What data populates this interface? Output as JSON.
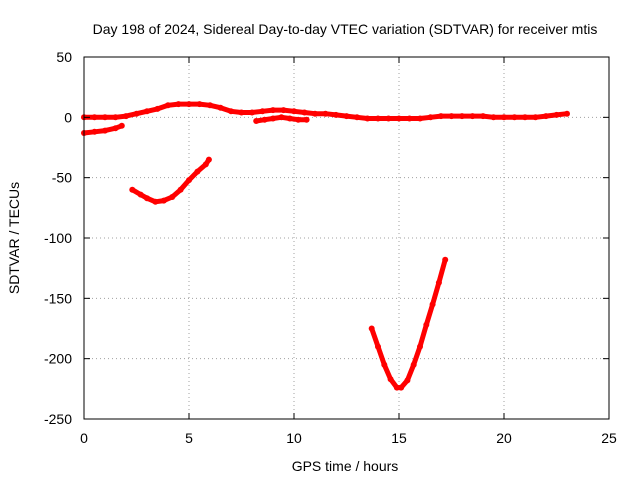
{
  "chart_data": {
    "type": "line",
    "title": "Day 198 of 2024, Sidereal Day-to-day VTEC variation (SDTVAR) for receiver mtis",
    "xlabel": "GPS time / hours",
    "ylabel": "SDTVAR / TECUs",
    "xlim": [
      0,
      25
    ],
    "ylim": [
      -250,
      50
    ],
    "xticks": [
      0,
      5,
      10,
      15,
      20,
      25
    ],
    "yticks": [
      -250,
      -200,
      -150,
      -100,
      -50,
      0,
      50
    ],
    "grid": true,
    "color": "#ff0000",
    "series": [
      {
        "x": [
          0.0,
          0.5,
          1.0,
          1.5,
          2.0,
          2.5,
          3.0,
          3.5,
          4.0,
          4.5,
          5.0,
          5.5,
          6.0,
          6.5,
          7.0,
          7.5,
          8.0,
          8.5,
          9.0,
          9.5,
          10.0,
          10.5,
          11.0,
          11.5,
          12.0,
          12.5,
          13.0,
          13.5,
          14.0,
          14.5,
          15.0,
          15.5,
          16.0,
          16.5,
          17.0,
          17.5,
          18.0,
          18.5,
          19.0,
          19.5,
          20.0,
          20.5,
          21.0,
          21.5,
          22.0,
          22.5,
          23.0
        ],
        "y": [
          0,
          0,
          0,
          0,
          1,
          3,
          5,
          7,
          10,
          11,
          11,
          11,
          10,
          8,
          5,
          4,
          4,
          5,
          6,
          6,
          5,
          4,
          3,
          3,
          2,
          1,
          0,
          -1,
          -1,
          -1,
          -1,
          -1,
          -1,
          0,
          1,
          1,
          1,
          1,
          1,
          0,
          0,
          0,
          0,
          0,
          1,
          2,
          3
        ]
      },
      {
        "x": [
          0.0,
          0.5,
          1.0,
          1.5,
          1.8
        ],
        "y": [
          -13,
          -12,
          -11,
          -9,
          -7
        ]
      },
      {
        "x": [
          8.2,
          8.6,
          9.0,
          9.4,
          9.8,
          10.2,
          10.6
        ],
        "y": [
          -3,
          -2,
          -1,
          0,
          -1,
          -2,
          -2
        ]
      },
      {
        "x": [
          2.3,
          2.7,
          3.0,
          3.4,
          3.8,
          4.2,
          4.6,
          5.0,
          5.4,
          5.8,
          5.95
        ],
        "y": [
          -60,
          -64,
          -67,
          -70,
          -69,
          -66,
          -60,
          -52,
          -45,
          -39,
          -35
        ]
      },
      {
        "x": [
          13.7,
          14.0,
          14.3,
          14.6,
          14.9,
          15.1,
          15.4,
          15.7,
          16.0,
          16.3,
          16.6,
          16.9,
          17.2
        ],
        "y": [
          -175,
          -190,
          -205,
          -217,
          -224,
          -224,
          -218,
          -205,
          -190,
          -172,
          -155,
          -137,
          -118
        ]
      }
    ]
  }
}
